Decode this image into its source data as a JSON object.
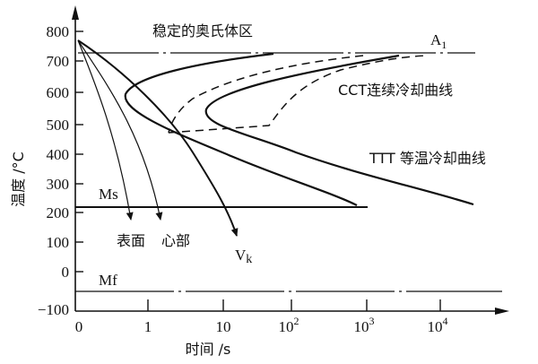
{
  "diagram": {
    "title_region": "稳定的奥氏体区",
    "y_axis_label": "温度 /°C",
    "x_axis_label": "时间 /s",
    "y_ticks": [
      "800",
      "700",
      "600",
      "500",
      "400",
      "300",
      "200",
      "100",
      "0",
      "−100"
    ],
    "x_ticks": [
      "0",
      "1",
      "10",
      "10",
      "10",
      "10"
    ],
    "x_tick_exponents": [
      "",
      "",
      "",
      "2",
      "3",
      "4"
    ],
    "labels": {
      "a1": "A",
      "a1_sub": "1",
      "cct": "CCT连续冷却曲线",
      "ttt": "TTT 等温冷却曲线",
      "ms": "Ms",
      "mf": "Mf",
      "surface": "表面",
      "core": "心部",
      "vk": "V",
      "vk_sub": "k"
    },
    "line_color": "#111111"
  }
}
